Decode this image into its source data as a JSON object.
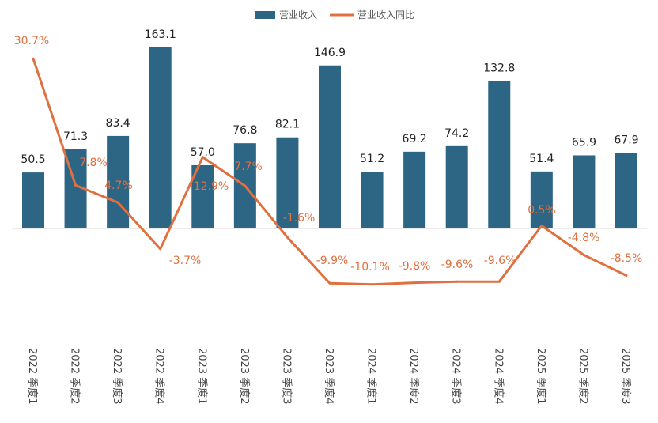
{
  "chart_data": {
    "type": "bar+line",
    "categories": [
      "2022 季度1",
      "2022 季度2",
      "2022 季度3",
      "2022 季度4",
      "2023 季度1",
      "2023 季度2",
      "2023 季度3",
      "2023 季度4",
      "2024 季度1",
      "2024 季度2",
      "2024 季度3",
      "2024 季度4",
      "2025 季度1",
      "2025 季度2",
      "2025 季度3"
    ],
    "series": [
      {
        "name": "营业收入",
        "type": "bar",
        "color": "#2D6584",
        "values": [
          50.5,
          71.3,
          83.4,
          163.1,
          57.0,
          76.8,
          82.1,
          146.9,
          51.2,
          69.2,
          74.2,
          132.8,
          51.4,
          65.9,
          67.9
        ],
        "labels": [
          "50.5",
          "71.3",
          "83.4",
          "163.1",
          "57.0",
          "76.8",
          "82.1",
          "146.9",
          "51.2",
          "69.2",
          "74.2",
          "132.8",
          "51.4",
          "65.9",
          "67.9"
        ]
      },
      {
        "name": "营业收入同比",
        "type": "line",
        "color": "#E0703F",
        "unit": "%",
        "values": [
          30.7,
          7.8,
          4.7,
          -3.7,
          12.9,
          7.7,
          -1.6,
          -9.9,
          -10.1,
          -9.8,
          -9.6,
          -9.6,
          0.5,
          -4.8,
          -8.5
        ],
        "labels": [
          "30.7%",
          "7.8%",
          "4.7%",
          "-3.7%",
          "12.9%",
          "7.7%",
          "-1.6%",
          "-9.9%",
          "-10.1%",
          "-9.8%",
          "-9.6%",
          "-9.6%",
          "0.5%",
          "-4.8%",
          "-8.5%"
        ]
      }
    ],
    "legend_position": "top-center",
    "grid": false
  }
}
